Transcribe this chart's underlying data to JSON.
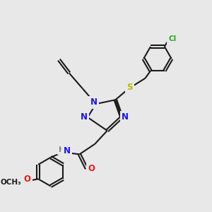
{
  "bg_color": "#e8e8e8",
  "bond_color": "#1a1a1a",
  "bond_lw": 1.5,
  "doffset": 0.06,
  "atom_colors": {
    "N": "#1515ee",
    "O": "#ee1515",
    "S": "#bbbb00",
    "Cl": "#22aa22",
    "H": "#778899",
    "C": "#1a1a1a"
  },
  "fs": 8.5,
  "fs_small": 7.5
}
